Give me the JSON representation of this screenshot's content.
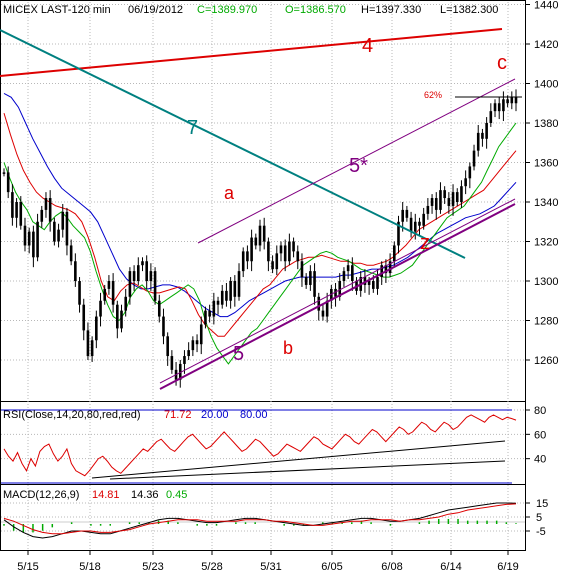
{
  "header": {
    "symbol": "MICEX LAST-120 min",
    "date": "06/19/2012",
    "close": "C=1389.970",
    "open": "O=1386.570",
    "high": "H=1397.330",
    "low": "L=1382.300"
  },
  "rsi_header": {
    "label": "RSI(Close,14,20,80,red,red)",
    "value": "71.72",
    "lower": "20.00",
    "upper": "80.00"
  },
  "macd_header": {
    "label": "MACD(12,26,9)",
    "macd": "14.81",
    "signal": "14.36",
    "hist": "0.45"
  },
  "wave_labels": {
    "w4": "4",
    "w7": "7",
    "wc": "c",
    "w5star": "5*",
    "wa": "a",
    "wz": "z",
    "w5": "5",
    "wb": "b",
    "pct": "62%"
  },
  "colors": {
    "price_bars": "#000000",
    "ma_fast": "#00aa00",
    "ma_mid": "#dd0000",
    "ma_slow": "#0000cc",
    "line_4": "#dd0000",
    "line_7": "#008080",
    "channel": "#800080",
    "rsi": "#dd0000",
    "macd": "#000000",
    "macd_signal": "#dd0000",
    "macd_hist": "#00aa00"
  },
  "chart_data": [
    {
      "type": "candlestick",
      "title": "MICEX LAST-120 min",
      "x_tick_labels": [
        "5/15",
        "5/18",
        "5/23",
        "5/28",
        "5/31",
        "6/05",
        "6/08",
        "6/14",
        "6/19"
      ],
      "y_tick_labels": [
        "1260",
        "1280",
        "1300",
        "1320",
        "1340",
        "1360",
        "1380",
        "1400",
        "1420",
        "1440"
      ],
      "ylim": [
        1240,
        1445
      ],
      "closes": [
        1355,
        1345,
        1332,
        1340,
        1328,
        1318,
        1325,
        1312,
        1330,
        1336,
        1342,
        1330,
        1320,
        1326,
        1335,
        1318,
        1310,
        1300,
        1288,
        1275,
        1262,
        1270,
        1282,
        1290,
        1296,
        1300,
        1288,
        1276,
        1285,
        1292,
        1305,
        1300,
        1308,
        1310,
        1300,
        1305,
        1290,
        1282,
        1272,
        1262,
        1255,
        1250,
        1258,
        1262,
        1265,
        1270,
        1268,
        1278,
        1285,
        1282,
        1290,
        1288,
        1295,
        1290,
        1300,
        1292,
        1305,
        1315,
        1310,
        1322,
        1318,
        1328,
        1320,
        1310,
        1306,
        1314,
        1318,
        1310,
        1320,
        1315,
        1310,
        1302,
        1298,
        1305,
        1292,
        1285,
        1282,
        1290,
        1296,
        1292,
        1300,
        1305,
        1308,
        1300,
        1295,
        1302,
        1298,
        1300,
        1296,
        1302,
        1308,
        1304,
        1310,
        1318,
        1330,
        1336,
        1332,
        1325,
        1330,
        1328,
        1334,
        1338,
        1342,
        1336,
        1346,
        1342,
        1338,
        1345,
        1340,
        1348,
        1352,
        1358,
        1366,
        1375,
        1372,
        1380,
        1386,
        1390,
        1386,
        1392,
        1390,
        1393,
        1390
      ],
      "ma_fast": [
        1360,
        1352,
        1345,
        1340,
        1336,
        1330,
        1328,
        1326,
        1330,
        1333,
        1335,
        1332,
        1328,
        1325,
        1322,
        1315,
        1305,
        1296,
        1288,
        1282,
        1280,
        1284,
        1292,
        1296,
        1298,
        1295,
        1290,
        1288,
        1290,
        1292,
        1294,
        1296,
        1298,
        1296,
        1290,
        1280,
        1272,
        1266,
        1262,
        1258,
        1262,
        1266,
        1270,
        1274,
        1276,
        1280,
        1284,
        1288,
        1292,
        1296,
        1300,
        1304,
        1308,
        1310,
        1312,
        1314,
        1315,
        1314,
        1312,
        1311,
        1310,
        1308,
        1306,
        1305,
        1304,
        1303,
        1302,
        1302,
        1303,
        1304,
        1306,
        1308,
        1312,
        1316,
        1320,
        1324,
        1328,
        1332,
        1334,
        1336,
        1338,
        1342,
        1346,
        1350,
        1356,
        1362,
        1368,
        1372,
        1376,
        1380
      ],
      "ma_mid": [
        1385,
        1374,
        1364,
        1356,
        1350,
        1345,
        1342,
        1340,
        1338,
        1337,
        1336,
        1334,
        1330,
        1322,
        1312,
        1300,
        1292,
        1290,
        1295,
        1298,
        1299,
        1297,
        1295,
        1294,
        1294,
        1295,
        1296,
        1297,
        1296,
        1290,
        1283,
        1278,
        1275,
        1272,
        1272,
        1276,
        1280,
        1284,
        1288,
        1292,
        1296,
        1298,
        1302,
        1306,
        1308,
        1310,
        1311,
        1312,
        1312,
        1313,
        1312,
        1311,
        1310,
        1310,
        1309,
        1309,
        1308,
        1308,
        1309,
        1310,
        1312,
        1315,
        1318,
        1322,
        1326,
        1328,
        1330,
        1332,
        1334,
        1336,
        1338,
        1340,
        1342,
        1344,
        1346,
        1350,
        1354,
        1358,
        1362,
        1366
      ],
      "ma_slow": [
        1395,
        1393,
        1388,
        1380,
        1372,
        1365,
        1358,
        1352,
        1347,
        1344,
        1341,
        1338,
        1335,
        1330,
        1322,
        1314,
        1306,
        1301,
        1298,
        1296,
        1296,
        1297,
        1298,
        1298,
        1297,
        1295,
        1292,
        1289,
        1286,
        1284,
        1282,
        1282,
        1284,
        1287,
        1290,
        1292,
        1294,
        1296,
        1298,
        1300,
        1301,
        1302,
        1302,
        1302,
        1302,
        1302,
        1302,
        1303,
        1303,
        1304,
        1305,
        1306,
        1306,
        1307,
        1308,
        1310,
        1312,
        1315,
        1318,
        1321,
        1324,
        1326,
        1328,
        1330,
        1332,
        1333,
        1334,
        1336,
        1338,
        1342,
        1346,
        1350
      ],
      "trendlines": [
        {
          "label": "4",
          "from": [
            "start",
            1427
          ],
          "to": [
            "6/19",
            1438
          ]
        },
        {
          "label": "7",
          "from": [
            "start",
            1438
          ],
          "to": [
            "6/14",
            1315
          ]
        },
        {
          "label": "5",
          "from": [
            "5/23",
            1240
          ],
          "to": [
            "6/19",
            1339
          ]
        },
        {
          "label": "5*",
          "from": [
            "5/28",
            1318
          ],
          "to": [
            "6/19",
            1403
          ]
        }
      ],
      "annotations": [
        "4",
        "7",
        "c",
        "5*",
        "a",
        "z",
        "5",
        "b",
        "62%"
      ]
    },
    {
      "type": "line",
      "title": "RSI(Close,14,20,80,red,red)",
      "y_tick_labels": [
        "40",
        "60",
        "80"
      ],
      "ylim": [
        10,
        90
      ],
      "levels": [
        20,
        80
      ],
      "last": 71.72,
      "values": [
        48,
        42,
        38,
        45,
        36,
        30,
        40,
        34,
        46,
        50,
        52,
        44,
        38,
        42,
        48,
        36,
        30,
        28,
        26,
        30,
        35,
        40,
        42,
        38,
        33,
        30,
        28,
        32,
        36,
        40,
        44,
        48,
        46,
        50,
        54,
        56,
        52,
        48,
        46,
        50,
        54,
        58,
        60,
        56,
        52,
        48,
        50,
        54,
        58,
        62,
        58,
        54,
        50,
        46,
        48,
        52,
        56,
        54,
        50,
        46,
        42,
        44,
        48,
        52,
        50,
        48,
        46,
        50,
        54,
        58,
        56,
        52,
        50,
        48,
        52,
        56,
        60,
        58,
        54,
        52,
        56,
        60,
        64,
        62,
        58,
        54,
        58,
        62,
        66,
        64,
        60,
        62,
        66,
        70,
        68,
        64,
        62,
        66,
        70,
        68,
        64,
        66,
        70,
        74,
        76,
        74,
        72,
        70,
        74,
        76,
        74,
        72,
        74,
        73,
        71.72
      ],
      "trendlines": [
        {
          "from": 25,
          "to": 55,
          "color": "#000000"
        },
        {
          "from": 28,
          "to": 38,
          "color": "#000000"
        }
      ]
    },
    {
      "type": "line",
      "title": "MACD(12,26,9)",
      "y_tick_labels": [
        "15",
        "5",
        "-5"
      ],
      "ylim": [
        -10,
        20
      ],
      "macd": [
        3,
        -2,
        -6,
        -9,
        -10,
        -9,
        -7,
        -5,
        -5,
        -6,
        -7,
        -7,
        -5,
        -3,
        -1,
        1,
        3,
        4,
        4,
        3,
        2,
        1,
        1,
        2,
        3,
        4,
        4,
        3,
        2,
        1,
        0,
        -1,
        -1,
        0,
        1,
        2,
        3,
        4,
        4,
        3,
        2,
        2,
        3,
        4,
        6,
        8,
        10,
        11,
        12,
        13,
        14,
        15,
        15,
        14.81
      ],
      "signal": [
        4,
        2,
        -1,
        -4,
        -6,
        -7,
        -7,
        -6,
        -5,
        -5,
        -6,
        -6,
        -5,
        -4,
        -2,
        0,
        1,
        2,
        3,
        3,
        3,
        2,
        2,
        2,
        2,
        3,
        3,
        3,
        2,
        2,
        1,
        0,
        -1,
        -1,
        0,
        1,
        2,
        2,
        3,
        3,
        3,
        2,
        3,
        3,
        4,
        5,
        7,
        8,
        10,
        11,
        12,
        13,
        14,
        14.36
      ],
      "histogram_last": 0.45
    }
  ]
}
